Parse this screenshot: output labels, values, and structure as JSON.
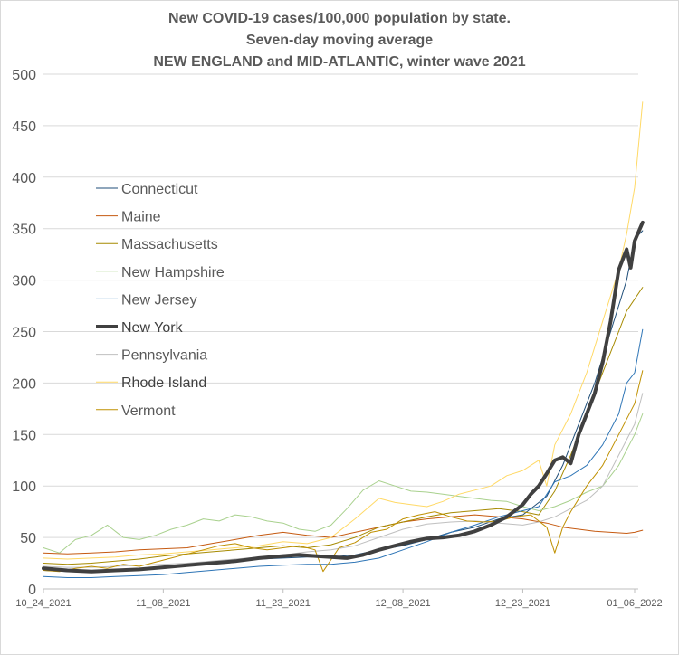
{
  "chart_data": {
    "type": "line",
    "title_lines": [
      "New COVID-19 cases/100,000 population by state.",
      "Seven-day moving average",
      "NEW ENGLAND and MID-ATLANTIC, winter wave 2021"
    ],
    "xlabel": "",
    "ylabel": "",
    "ylim": [
      0,
      500
    ],
    "yticks": [
      0,
      50,
      100,
      150,
      200,
      250,
      300,
      350,
      400,
      450,
      500
    ],
    "x_tick_labels": [
      "10_24_2021",
      "11_08_2021",
      "11_23_2021",
      "12_08_2021",
      "12_23_2021",
      "01_06_2022"
    ],
    "x_tick_days": [
      0,
      15,
      30,
      45,
      60,
      74
    ],
    "x_days_total": 74,
    "grid": "horizontal",
    "legend_position": "upper-left",
    "series": [
      {
        "name": "Connecticut",
        "color": "#1f4e79",
        "width": 1,
        "points": [
          [
            0,
            18
          ],
          [
            3,
            17
          ],
          [
            6,
            16
          ],
          [
            9,
            18
          ],
          [
            12,
            19
          ],
          [
            15,
            21
          ],
          [
            18,
            23
          ],
          [
            21,
            25
          ],
          [
            24,
            27
          ],
          [
            27,
            29
          ],
          [
            30,
            30
          ],
          [
            33,
            31
          ],
          [
            36,
            31
          ],
          [
            39,
            33
          ],
          [
            42,
            38
          ],
          [
            45,
            42
          ],
          [
            48,
            48
          ],
          [
            51,
            55
          ],
          [
            54,
            60
          ],
          [
            57,
            68
          ],
          [
            60,
            72
          ],
          [
            63,
            90
          ],
          [
            65,
            120
          ],
          [
            67,
            160
          ],
          [
            69,
            200
          ],
          [
            71,
            250
          ],
          [
            73,
            300
          ],
          [
            74,
            340
          ],
          [
            75,
            348
          ]
        ]
      },
      {
        "name": "Maine",
        "color": "#c55a11",
        "width": 1,
        "points": [
          [
            0,
            35
          ],
          [
            3,
            34
          ],
          [
            6,
            35
          ],
          [
            9,
            36
          ],
          [
            12,
            38
          ],
          [
            15,
            39
          ],
          [
            18,
            40
          ],
          [
            21,
            44
          ],
          [
            24,
            48
          ],
          [
            27,
            52
          ],
          [
            30,
            55
          ],
          [
            33,
            52
          ],
          [
            36,
            50
          ],
          [
            39,
            55
          ],
          [
            42,
            60
          ],
          [
            45,
            65
          ],
          [
            48,
            68
          ],
          [
            51,
            70
          ],
          [
            54,
            72
          ],
          [
            57,
            70
          ],
          [
            60,
            68
          ],
          [
            63,
            64
          ],
          [
            65,
            60
          ],
          [
            67,
            58
          ],
          [
            69,
            56
          ],
          [
            71,
            55
          ],
          [
            73,
            54
          ],
          [
            74,
            55
          ],
          [
            75,
            57
          ]
        ]
      },
      {
        "name": "Massachusetts",
        "color": "#a68a00",
        "width": 1,
        "points": [
          [
            0,
            25
          ],
          [
            3,
            24
          ],
          [
            6,
            25
          ],
          [
            9,
            27
          ],
          [
            12,
            29
          ],
          [
            15,
            32
          ],
          [
            18,
            34
          ],
          [
            21,
            36
          ],
          [
            24,
            38
          ],
          [
            27,
            40
          ],
          [
            30,
            42
          ],
          [
            33,
            40
          ],
          [
            36,
            43
          ],
          [
            39,
            50
          ],
          [
            42,
            60
          ],
          [
            45,
            65
          ],
          [
            48,
            70
          ],
          [
            51,
            74
          ],
          [
            54,
            76
          ],
          [
            57,
            78
          ],
          [
            60,
            75
          ],
          [
            62,
            72
          ],
          [
            64,
            95
          ],
          [
            66,
            130
          ],
          [
            68,
            170
          ],
          [
            70,
            210
          ],
          [
            72,
            250
          ],
          [
            73,
            270
          ],
          [
            75,
            293
          ]
        ]
      },
      {
        "name": "New Hampshire",
        "color": "#a9d18e",
        "width": 1,
        "points": [
          [
            0,
            40
          ],
          [
            2,
            35
          ],
          [
            4,
            48
          ],
          [
            6,
            52
          ],
          [
            8,
            62
          ],
          [
            10,
            50
          ],
          [
            12,
            48
          ],
          [
            14,
            52
          ],
          [
            16,
            58
          ],
          [
            18,
            62
          ],
          [
            20,
            68
          ],
          [
            22,
            66
          ],
          [
            24,
            72
          ],
          [
            26,
            70
          ],
          [
            28,
            66
          ],
          [
            30,
            64
          ],
          [
            32,
            58
          ],
          [
            34,
            56
          ],
          [
            36,
            62
          ],
          [
            38,
            78
          ],
          [
            40,
            96
          ],
          [
            42,
            105
          ],
          [
            44,
            100
          ],
          [
            46,
            95
          ],
          [
            48,
            94
          ],
          [
            50,
            92
          ],
          [
            52,
            90
          ],
          [
            54,
            88
          ],
          [
            56,
            86
          ],
          [
            58,
            85
          ],
          [
            60,
            80
          ],
          [
            62,
            76
          ],
          [
            64,
            80
          ],
          [
            66,
            86
          ],
          [
            68,
            94
          ],
          [
            70,
            100
          ],
          [
            72,
            120
          ],
          [
            74,
            150
          ],
          [
            75,
            170
          ]
        ]
      },
      {
        "name": "New Jersey",
        "color": "#2e75b6",
        "width": 1,
        "points": [
          [
            0,
            12
          ],
          [
            3,
            11
          ],
          [
            6,
            11
          ],
          [
            9,
            12
          ],
          [
            12,
            13
          ],
          [
            15,
            14
          ],
          [
            18,
            16
          ],
          [
            21,
            18
          ],
          [
            24,
            20
          ],
          [
            27,
            22
          ],
          [
            30,
            23
          ],
          [
            33,
            24
          ],
          [
            36,
            24
          ],
          [
            39,
            26
          ],
          [
            42,
            30
          ],
          [
            45,
            38
          ],
          [
            48,
            46
          ],
          [
            51,
            55
          ],
          [
            54,
            62
          ],
          [
            57,
            70
          ],
          [
            60,
            76
          ],
          [
            62,
            80
          ],
          [
            64,
            104
          ],
          [
            66,
            110
          ],
          [
            68,
            120
          ],
          [
            70,
            140
          ],
          [
            72,
            170
          ],
          [
            73,
            200
          ],
          [
            74,
            210
          ],
          [
            75,
            252
          ]
        ]
      },
      {
        "name": "New York",
        "color": "#404040",
        "width": 4,
        "points": [
          [
            0,
            20
          ],
          [
            3,
            18
          ],
          [
            6,
            17
          ],
          [
            9,
            18
          ],
          [
            12,
            19
          ],
          [
            15,
            21
          ],
          [
            18,
            23
          ],
          [
            21,
            25
          ],
          [
            24,
            27
          ],
          [
            27,
            30
          ],
          [
            30,
            32
          ],
          [
            32,
            33
          ],
          [
            34,
            32
          ],
          [
            36,
            31
          ],
          [
            38,
            30
          ],
          [
            40,
            33
          ],
          [
            42,
            38
          ],
          [
            44,
            42
          ],
          [
            46,
            46
          ],
          [
            48,
            49
          ],
          [
            50,
            50
          ],
          [
            52,
            52
          ],
          [
            54,
            56
          ],
          [
            56,
            62
          ],
          [
            58,
            70
          ],
          [
            60,
            82
          ],
          [
            61,
            92
          ],
          [
            62,
            100
          ],
          [
            63,
            112
          ],
          [
            64,
            125
          ],
          [
            65,
            128
          ],
          [
            66,
            122
          ],
          [
            67,
            150
          ],
          [
            68,
            170
          ],
          [
            69,
            190
          ],
          [
            70,
            220
          ],
          [
            71,
            260
          ],
          [
            72,
            310
          ],
          [
            73,
            330
          ],
          [
            73.5,
            312
          ],
          [
            74,
            338
          ],
          [
            75,
            356
          ]
        ]
      },
      {
        "name": "Pennsylvania",
        "color": "#bfbfbf",
        "width": 1,
        "points": [
          [
            0,
            22
          ],
          [
            3,
            21
          ],
          [
            6,
            21
          ],
          [
            9,
            22
          ],
          [
            12,
            23
          ],
          [
            15,
            24
          ],
          [
            18,
            25
          ],
          [
            21,
            27
          ],
          [
            24,
            29
          ],
          [
            27,
            31
          ],
          [
            30,
            33
          ],
          [
            33,
            36
          ],
          [
            36,
            38
          ],
          [
            39,
            42
          ],
          [
            42,
            50
          ],
          [
            45,
            58
          ],
          [
            48,
            63
          ],
          [
            51,
            65
          ],
          [
            54,
            66
          ],
          [
            57,
            64
          ],
          [
            60,
            62
          ],
          [
            62,
            65
          ],
          [
            64,
            70
          ],
          [
            66,
            78
          ],
          [
            68,
            86
          ],
          [
            70,
            100
          ],
          [
            72,
            130
          ],
          [
            74,
            160
          ],
          [
            75,
            190
          ]
        ]
      },
      {
        "name": "Rhode Island",
        "color": "#ffd966",
        "width": 1,
        "points": [
          [
            0,
            30
          ],
          [
            3,
            29
          ],
          [
            6,
            30
          ],
          [
            9,
            31
          ],
          [
            12,
            33
          ],
          [
            15,
            34
          ],
          [
            18,
            36
          ],
          [
            21,
            38
          ],
          [
            24,
            40
          ],
          [
            27,
            42
          ],
          [
            30,
            46
          ],
          [
            33,
            44
          ],
          [
            36,
            50
          ],
          [
            39,
            68
          ],
          [
            42,
            88
          ],
          [
            44,
            84
          ],
          [
            46,
            82
          ],
          [
            48,
            80
          ],
          [
            50,
            85
          ],
          [
            52,
            92
          ],
          [
            54,
            96
          ],
          [
            56,
            100
          ],
          [
            58,
            110
          ],
          [
            60,
            115
          ],
          [
            62,
            125
          ],
          [
            63,
            100
          ],
          [
            64,
            140
          ],
          [
            66,
            170
          ],
          [
            68,
            210
          ],
          [
            70,
            260
          ],
          [
            72,
            310
          ],
          [
            73,
            345
          ],
          [
            74,
            390
          ],
          [
            75,
            473
          ]
        ]
      },
      {
        "name": "Vermont",
        "color": "#bf9000",
        "width": 1,
        "points": [
          [
            0,
            18
          ],
          [
            2,
            17
          ],
          [
            4,
            20
          ],
          [
            6,
            22
          ],
          [
            8,
            20
          ],
          [
            10,
            24
          ],
          [
            12,
            22
          ],
          [
            14,
            26
          ],
          [
            16,
            30
          ],
          [
            18,
            34
          ],
          [
            20,
            38
          ],
          [
            22,
            42
          ],
          [
            24,
            44
          ],
          [
            26,
            40
          ],
          [
            28,
            38
          ],
          [
            30,
            40
          ],
          [
            32,
            42
          ],
          [
            34,
            38
          ],
          [
            35,
            17
          ],
          [
            37,
            40
          ],
          [
            39,
            45
          ],
          [
            41,
            55
          ],
          [
            43,
            58
          ],
          [
            45,
            68
          ],
          [
            47,
            72
          ],
          [
            49,
            75
          ],
          [
            51,
            70
          ],
          [
            53,
            66
          ],
          [
            55,
            65
          ],
          [
            57,
            66
          ],
          [
            59,
            70
          ],
          [
            61,
            72
          ],
          [
            63,
            60
          ],
          [
            64,
            35
          ],
          [
            65,
            60
          ],
          [
            66,
            75
          ],
          [
            68,
            100
          ],
          [
            70,
            120
          ],
          [
            72,
            150
          ],
          [
            74,
            180
          ],
          [
            75,
            212
          ]
        ]
      }
    ]
  }
}
